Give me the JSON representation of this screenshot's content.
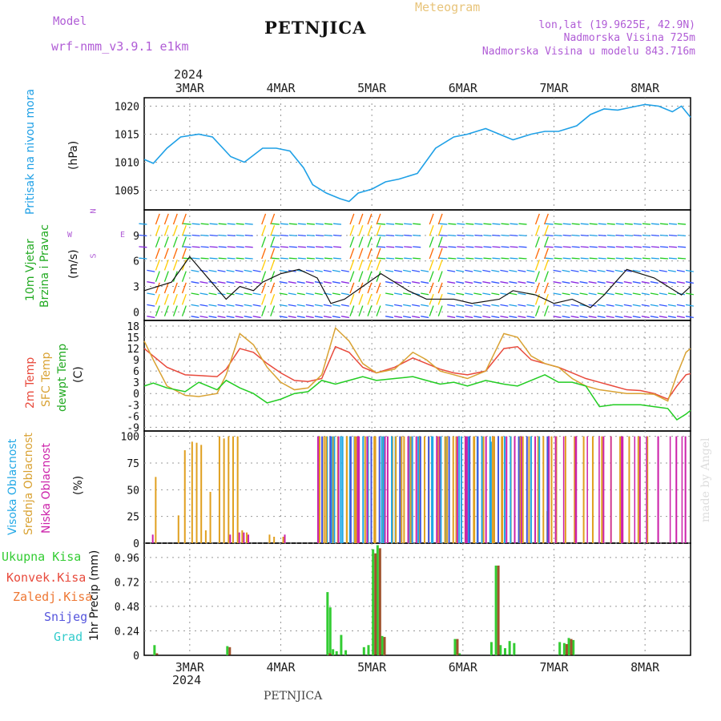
{
  "header": {
    "model_caption": "Model",
    "model_name": "wrf-nmm_v3.9.1 e1km",
    "station": "PETNJICA",
    "kind": "Meteogram",
    "lonlat": "lon,lat (19.9625E, 42.9N)",
    "elevation": "Nadmorska Visina 725m",
    "model_elevation": "Nadmorska Visina u modelu 843.716m",
    "footer_station": "PETNJICA",
    "credit": "made by Angel"
  },
  "colors": {
    "pressure": "#1fa0e6",
    "t2m": "#e84a3c",
    "sfc": "#d9a233",
    "dew": "#22cc22",
    "high_cloud": "#22a8e6",
    "mid_cloud": "#e0a020",
    "low_cloud": "#cc22aa",
    "total_precip": "#33cc33",
    "conv_precip": "#cc4444",
    "frozen_precip": "#ee7733",
    "snow": "#5555dd",
    "graupel": "#33cccc",
    "model_text": "#b05cd6",
    "meteogram_text": "#e8c47a"
  },
  "x_axis": {
    "year": "2024",
    "ticks": [
      "3MAR",
      "4MAR",
      "5MAR",
      "6MAR",
      "7MAR",
      "8MAR"
    ]
  },
  "panels": {
    "pressure": {
      "labels": [
        "Pritisak na nivou mora"
      ],
      "unit": "(hPa)",
      "ticks": [
        "1005",
        "1010",
        "1015",
        "1020"
      ]
    },
    "wind": {
      "labels": [
        "10m Vjetar",
        "Brzina i Pravac"
      ],
      "unit": "(m/s)",
      "ticks": [
        "0",
        "3",
        "6",
        "9"
      ],
      "compass": {
        "n": "N",
        "s": "S",
        "w": "W",
        "e": "E"
      }
    },
    "temperature": {
      "labels": [
        "2m Temp",
        "SFC Temp",
        "dewpt Temp"
      ],
      "unit": "(C)",
      "ticks": [
        "-9",
        "-6",
        "-3",
        "0",
        "3",
        "6",
        "9",
        "12",
        "15",
        "18"
      ]
    },
    "cloud": {
      "labels": [
        "Visoka Oblacnost",
        "Srednja Oblacnost",
        "Niska Oblacnost"
      ],
      "unit": "(%)",
      "ticks": [
        "0",
        "25",
        "50",
        "75",
        "100"
      ]
    },
    "precip": {
      "labels": [
        "Ukupna Kisa",
        "Konvek.Kisa",
        "Zaledj.Kisa",
        "Snijeg",
        "Grad"
      ],
      "unit": "1hr Precip (mm)",
      "ticks": [
        "0",
        "0.24",
        "0.48",
        "0.72",
        "0.96"
      ]
    }
  },
  "chart_data": [
    {
      "type": "line",
      "panel": "pressure",
      "ylabel": "Pritisak na nivou mora (hPa)",
      "ylim": [
        1001.5,
        1021.5
      ],
      "x_days": [
        0,
        0.1,
        0.25,
        0.4,
        0.6,
        0.75,
        0.95,
        1.1,
        1.3,
        1.45,
        1.6,
        1.75,
        1.85,
        2.0,
        2.15,
        2.25,
        2.35,
        2.5,
        2.65,
        2.8,
        3.0,
        3.2,
        3.4,
        3.55,
        3.75,
        3.9,
        4.05,
        4.25,
        4.4,
        4.55,
        4.75,
        4.9,
        5.05,
        5.2,
        5.35,
        5.5,
        5.65,
        5.8,
        5.9,
        6.0
      ],
      "series": [
        {
          "name": "Pritisak na nivou mora",
          "values": [
            1010.5,
            1009.8,
            1012.5,
            1014.5,
            1015,
            1014.5,
            1011,
            1010,
            1012.5,
            1012.5,
            1012,
            1009,
            1006,
            1004.5,
            1003.5,
            1003,
            1004.5,
            1005.2,
            1006.5,
            1007,
            1008,
            1012.5,
            1014.5,
            1015,
            1016,
            1015,
            1014,
            1015,
            1015.5,
            1015.5,
            1016.5,
            1018.5,
            1019.5,
            1019.3,
            1019.8,
            1020.3,
            1020,
            1019,
            1020,
            1018
          ]
        }
      ]
    },
    {
      "type": "line",
      "panel": "wind",
      "ylabel": "10m Vjetar Brzina i Pravac (m/s)",
      "ylim": [
        -1,
        12
      ],
      "x_days": [
        0,
        0.3,
        0.5,
        0.7,
        0.9,
        1.05,
        1.2,
        1.3,
        1.5,
        1.7,
        1.8,
        1.9,
        2.05,
        2.2,
        2.4,
        2.6,
        2.9,
        3.1,
        3.4,
        3.6,
        3.9,
        4.05,
        4.3,
        4.5,
        4.7,
        4.9,
        5.05,
        5.3,
        5.6,
        5.9,
        6.0
      ],
      "series": [
        {
          "name": "Brzina",
          "values": [
            2.5,
            3.5,
            6.5,
            4,
            1.5,
            3,
            2.5,
            3.5,
            4.5,
            5,
            4.5,
            4,
            1,
            1.5,
            3,
            4.5,
            2.5,
            1.5,
            1.5,
            1,
            1.5,
            2.5,
            2,
            1,
            1.5,
            0.5,
            2,
            5,
            4,
            2,
            3
          ]
        }
      ]
    },
    {
      "type": "line",
      "panel": "temperature",
      "ylabel": "(C)",
      "ylim": [
        -10,
        19.5
      ],
      "x_days": [
        0,
        0.1,
        0.25,
        0.45,
        0.6,
        0.8,
        0.9,
        1.05,
        1.2,
        1.35,
        1.5,
        1.65,
        1.8,
        1.95,
        2.1,
        2.25,
        2.4,
        2.55,
        2.75,
        2.95,
        3.1,
        3.25,
        3.4,
        3.55,
        3.75,
        3.95,
        4.1,
        4.25,
        4.4,
        4.55,
        4.7,
        4.85,
        5.0,
        5.15,
        5.3,
        5.45,
        5.6,
        5.75,
        5.85,
        5.95,
        6.0
      ],
      "series": [
        {
          "name": "2m Temp",
          "values": [
            12,
            10,
            7,
            5,
            4.8,
            4.5,
            6.5,
            12,
            11,
            8,
            5.5,
            3.5,
            3.2,
            4,
            12.5,
            11,
            7,
            5.5,
            7,
            9.5,
            8,
            6.5,
            5.5,
            5,
            6,
            12,
            12.5,
            9,
            8,
            7,
            5.5,
            4,
            3,
            2,
            1,
            0.8,
            0,
            -1.5,
            2,
            5,
            5.3
          ]
        },
        {
          "name": "SFC Temp",
          "values": [
            14,
            9,
            2,
            -0.5,
            -0.8,
            0,
            5,
            16,
            13,
            7,
            3,
            1,
            1.5,
            5,
            17.5,
            14,
            8,
            5.5,
            6.5,
            11,
            9,
            6,
            5,
            4,
            6,
            16,
            15,
            10,
            8,
            7,
            4,
            2,
            1,
            0.5,
            0,
            0,
            -0.2,
            -2,
            5,
            11,
            12
          ]
        },
        {
          "name": "dewpt Temp",
          "values": [
            2,
            2.8,
            1.5,
            0.5,
            3,
            1,
            3.5,
            1.5,
            0,
            -2.5,
            -1.5,
            0,
            0.5,
            3.5,
            2.5,
            3.5,
            4.5,
            3.5,
            4,
            4.5,
            3.5,
            2.5,
            3,
            2,
            3.5,
            2.5,
            2,
            3.5,
            5,
            3,
            3,
            2,
            -3.5,
            -3,
            -3,
            -3,
            -3.5,
            -4,
            -7,
            -5.5,
            -4.5
          ]
        }
      ]
    },
    {
      "type": "bar",
      "panel": "cloud",
      "ylabel": "(%)",
      "ylim": [
        0,
        105
      ],
      "note": "hourly cloud fraction; dense 100% bars from ~4MAR 09h through ~7MAR",
      "series": [
        {
          "name": "Visoka Oblacnost",
          "x_days": [
            1.9,
            2.0,
            2.05,
            2.15,
            2.25,
            2.3,
            2.45,
            2.6,
            2.75,
            2.9,
            3.0,
            3.15,
            3.3,
            3.45,
            3.55,
            3.65,
            3.8,
            3.95
          ],
          "values": [
            100,
            100,
            100,
            100,
            100,
            100,
            100,
            100,
            100,
            100,
            100,
            100,
            100,
            100,
            100,
            100,
            95,
            100
          ]
        },
        {
          "name": "Srednja Oblacnost",
          "x_days": [
            0.1,
            0.35,
            0.42,
            0.5,
            0.55,
            0.6,
            0.65,
            0.7,
            0.8,
            0.85,
            0.9,
            0.95,
            1.0,
            1.05,
            1.1,
            1.35,
            1.4,
            1.5,
            1.9,
            1.95,
            2.05,
            2.1,
            2.2,
            2.3,
            2.4,
            2.5,
            2.6,
            2.7,
            2.8,
            2.9,
            3.0,
            3.1,
            3.2,
            3.3,
            3.4,
            3.5,
            3.6,
            3.7,
            3.8,
            3.9,
            4.0,
            4.1,
            4.2,
            4.3,
            4.4,
            4.5,
            4.6,
            4.7,
            4.8,
            4.9,
            5.0,
            5.1,
            5.2,
            5.3,
            5.4,
            5.5
          ],
          "values": [
            62,
            26,
            87,
            95,
            94,
            92,
            12,
            48,
            100,
            98,
            100,
            100,
            100,
            12,
            10,
            8,
            6,
            6,
            100,
            100,
            100,
            100,
            100,
            100,
            100,
            100,
            100,
            100,
            100,
            100,
            100,
            100,
            100,
            100,
            100,
            100,
            100,
            100,
            100,
            100,
            100,
            100,
            100,
            100,
            30,
            100,
            100,
            100,
            100,
            100,
            100,
            100,
            100,
            100,
            100,
            100
          ]
        },
        {
          "name": "Niska Oblacnost",
          "x_days": [
            0.05,
            0.9,
            1.0,
            1.05,
            1.1,
            1.5,
            2.0,
            2.3,
            2.6,
            2.9,
            3.2,
            3.5,
            3.8,
            4.1,
            4.4,
            4.7,
            5.0,
            5.2,
            5.4,
            5.6,
            5.8,
            5.9
          ],
          "values": [
            8,
            8,
            10,
            10,
            8,
            8,
            100,
            100,
            100,
            100,
            100,
            100,
            100,
            100,
            100,
            100,
            100,
            100,
            100,
            100,
            100,
            100
          ]
        }
      ]
    },
    {
      "type": "bar",
      "panel": "precip",
      "ylabel": "1hr Precip (mm)",
      "ylim": [
        0,
        1.1
      ],
      "series": [
        {
          "name": "Ukupna Kisa",
          "x_days": [
            0.1,
            0.9,
            2.0,
            2.03,
            2.06,
            2.1,
            2.15,
            2.2,
            2.4,
            2.45,
            2.5,
            2.55,
            2.6,
            3.4,
            3.45,
            3.8,
            3.85,
            3.9,
            3.95,
            4.0,
            4.05,
            4.55,
            4.6,
            4.65,
            4.7
          ],
          "values": [
            0.1,
            0.09,
            0.62,
            0.47,
            0.06,
            0.04,
            0.2,
            0.05,
            0.08,
            0.1,
            1.04,
            1.08,
            0.19,
            0.16,
            0.02,
            0.13,
            0.88,
            0.1,
            0.07,
            0.14,
            0.12,
            0.13,
            0.12,
            0.17,
            0.15
          ]
        },
        {
          "name": "Konvek.Kisa",
          "x_days": [
            0.1,
            0.9,
            2.0,
            2.5,
            2.55,
            2.6,
            3.4,
            3.85,
            4.6,
            4.65
          ],
          "values": [
            0.02,
            0.08,
            0.02,
            1.0,
            1.05,
            0.18,
            0.16,
            0.88,
            0.11,
            0.16
          ]
        },
        {
          "name": "Zaledj.Kisa",
          "x_days": [],
          "values": []
        },
        {
          "name": "Snijeg",
          "x_days": [],
          "values": []
        },
        {
          "name": "Grad",
          "x_days": [],
          "values": []
        }
      ]
    }
  ]
}
